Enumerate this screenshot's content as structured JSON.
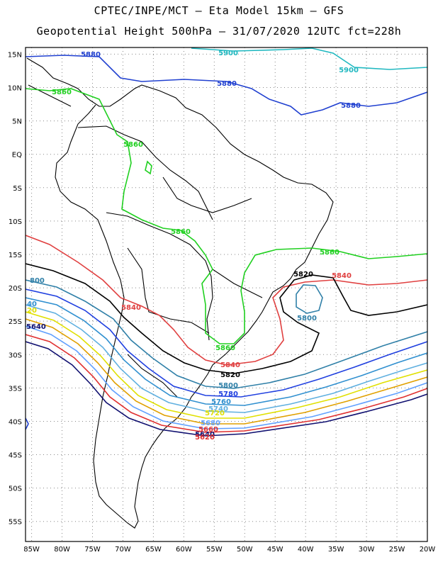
{
  "header": {
    "line1": "CPTEC/INPE/MCT –  Eta Model 15km – GFS",
    "line2": "Geopotential Height 500hPa – 31/07/2020 12UTC fct=228h"
  },
  "map": {
    "lon_range": [
      -86,
      -20
    ],
    "lat_range": [
      -58,
      16
    ],
    "lat_ticks": [
      "15N",
      "10N",
      "5N",
      "EQ",
      "5S",
      "10S",
      "15S",
      "20S",
      "25S",
      "30S",
      "35S",
      "40S",
      "45S",
      "50S",
      "55S"
    ],
    "lon_ticks": [
      "85W",
      "80W",
      "75W",
      "70W",
      "65W",
      "60W",
      "55W",
      "50W",
      "45W",
      "40W",
      "35W",
      "30W",
      "25W",
      "20W"
    ],
    "grid": "dotted",
    "colors": {
      "c5900": "#20b8c0",
      "c5880": "#2040d0",
      "c5860": "#20d020",
      "c5840": "#e04040",
      "c5820": "#000000",
      "c5800": "#3080a8",
      "c5780": "#2040e0",
      "c5760": "#3090d0",
      "c5740": "#60b0e0",
      "c5720": "#e0e000",
      "c5700": "#e0a000",
      "c5680": "#60a0ff",
      "c5660": "#e03030",
      "c5640": "#101070"
    },
    "contour_labels": {
      "c5900a": "5900",
      "c5900b": "5900",
      "c5880a": "5880",
      "c5880b": "5880",
      "c5880c": "5880",
      "c5860a": "5860",
      "c5860b": "5860",
      "c5860c": "5860",
      "c5860d": "5860",
      "c5860e": "5860",
      "c5840a": "5840",
      "c5840b": "5840",
      "c5840c": "5840",
      "c5820a": "5820",
      "c5820b": "5820",
      "c5800a": "5800",
      "c5800b": "5800",
      "c5800c": "5800",
      "c5780": "5780",
      "c5760": "5760",
      "c5740": "5740",
      "c5720": "5720",
      "c5680": "5680",
      "c5660": "5660",
      "c5640": "5640",
      "c5620": "5620",
      "w5800": "800",
      "w5840": "40",
      "w5820": "20",
      "w5640": "5640"
    }
  }
}
